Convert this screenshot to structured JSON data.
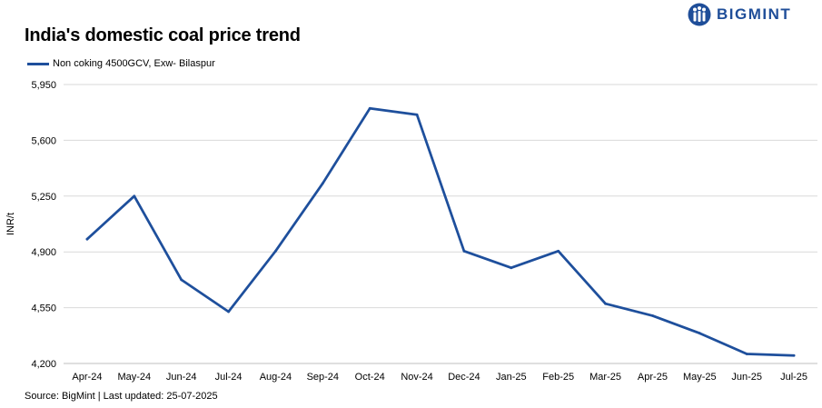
{
  "title": "India's domestic coal price trend",
  "brand": "BIGMINT",
  "legend_label": "Non coking 4500GCV, Exw- Bilaspur",
  "source": "Source: BigMint | Last updated: 25-07-2025",
  "colors": {
    "line": "#1e4f9c",
    "grid": "#d9d9d9",
    "brand": "#1f4e99"
  },
  "chart_data": {
    "type": "line",
    "title": "India's domestic coal price trend",
    "xlabel": "",
    "ylabel": "INR/t",
    "categories": [
      "Apr-24",
      "May-24",
      "Jun-24",
      "Jul-24",
      "Aug-24",
      "Sep-24",
      "Oct-24",
      "Nov-24",
      "Dec-24",
      "Jan-25",
      "Feb-25",
      "Mar-25",
      "Apr-25",
      "May-25",
      "Jun-25",
      "Jul-25"
    ],
    "series": [
      {
        "name": "Non coking 4500GCV, Exw- Bilaspur",
        "values": [
          4980,
          5250,
          4725,
          4525,
          4905,
          5330,
          5800,
          5760,
          4905,
          4800,
          4905,
          4575,
          4500,
          4390,
          4260,
          4250
        ]
      }
    ],
    "ylim": [
      4200,
      5950
    ],
    "yticks": [
      "5,950",
      "5,600",
      "5,250",
      "4,900",
      "4,550",
      "4,200"
    ],
    "ytick_values": [
      5950,
      5600,
      5250,
      4900,
      4550,
      4200
    ],
    "grid": true,
    "legend_position": "top-left"
  }
}
